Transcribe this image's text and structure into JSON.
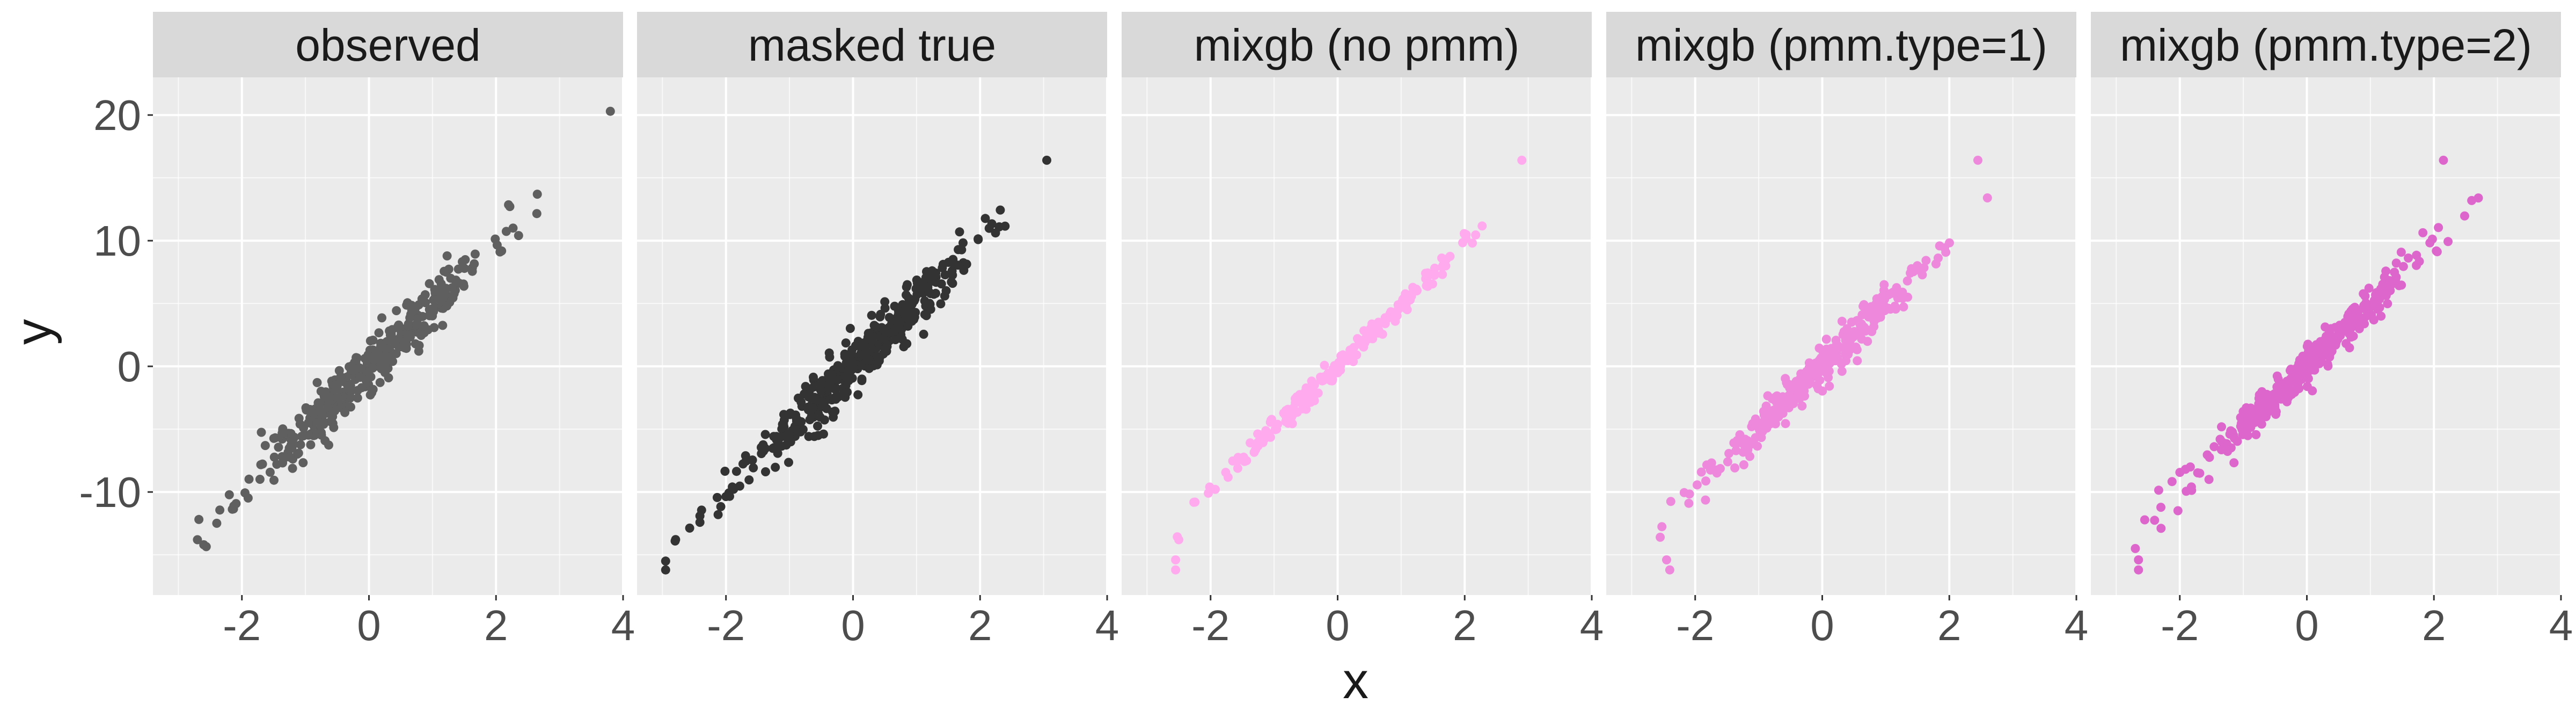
{
  "chart_data": {
    "type": "scatter",
    "layout": "faceted",
    "shared_axes": true,
    "xlabel": "x",
    "ylabel": "y",
    "xlim": [
      -3.4,
      4.0
    ],
    "ylim": [
      -18.2,
      23.0
    ],
    "x_ticks": [
      -2,
      0,
      2,
      4
    ],
    "y_ticks": [
      -10,
      0,
      10,
      20
    ],
    "x_tick_labels": [
      "-2",
      "0",
      "2",
      "4"
    ],
    "y_tick_labels": [
      "-10",
      "0",
      "10",
      "20"
    ],
    "grid": true,
    "legend": "none",
    "style": {
      "panel_background": "#ebebeb",
      "strip_background": "#d9d9d9",
      "grid_color": "#ffffff",
      "text_color": "#1a1a1a",
      "tick_label_color": "#4d4d4d"
    },
    "panels": [
      {
        "title": "observed",
        "color": "#5f5f5f",
        "slope": 4.9,
        "spread": 1.05,
        "x_center": 0.0,
        "x_sd": 0.95,
        "n_points": 400,
        "seed": 11,
        "extra_points": [
          {
            "x": 3.8,
            "y": 20.3
          },
          {
            "x": 2.65,
            "y": 13.7
          },
          {
            "x": -2.6,
            "y": -14.2
          },
          {
            "x": -2.7,
            "y": -13.8
          }
        ]
      },
      {
        "title": "masked true",
        "color": "#333333",
        "slope": 4.9,
        "spread": 1.05,
        "x_center": 0.0,
        "x_sd": 0.95,
        "n_points": 400,
        "seed": 23,
        "extra_points": [
          {
            "x": 3.05,
            "y": 16.4
          },
          {
            "x": -2.95,
            "y": -16.2
          },
          {
            "x": -2.95,
            "y": -15.5
          },
          {
            "x": -2.8,
            "y": -13.9
          }
        ]
      },
      {
        "title": "mixgb (no pmm)",
        "color": "#ffaaee",
        "slope": 4.9,
        "spread": 0.45,
        "x_center": 0.0,
        "x_sd": 0.95,
        "n_points": 220,
        "seed": 37,
        "extra_points": [
          {
            "x": 2.9,
            "y": 16.4
          },
          {
            "x": -2.55,
            "y": -16.2
          },
          {
            "x": -2.55,
            "y": -15.4
          },
          {
            "x": -2.5,
            "y": -13.8
          }
        ]
      },
      {
        "title": "mixgb (pmm.type=1)",
        "color": "#ee88dd",
        "slope": 4.9,
        "spread": 0.75,
        "x_center": 0.0,
        "x_sd": 0.95,
        "n_points": 330,
        "seed": 53,
        "extra_points": [
          {
            "x": 2.45,
            "y": 16.4
          },
          {
            "x": -2.4,
            "y": -16.2
          },
          {
            "x": -2.45,
            "y": -15.4
          },
          {
            "x": -2.55,
            "y": -13.6
          }
        ]
      },
      {
        "title": "mixgb (pmm.type=2)",
        "color": "#dd66cc",
        "slope": 4.9,
        "spread": 0.75,
        "x_center": 0.0,
        "x_sd": 0.95,
        "n_points": 360,
        "seed": 71,
        "extra_points": [
          {
            "x": 2.15,
            "y": 16.4
          },
          {
            "x": 2.7,
            "y": 13.4
          },
          {
            "x": -2.65,
            "y": -16.2
          },
          {
            "x": -2.65,
            "y": -15.4
          },
          {
            "x": -2.7,
            "y": -14.5
          }
        ]
      }
    ]
  }
}
